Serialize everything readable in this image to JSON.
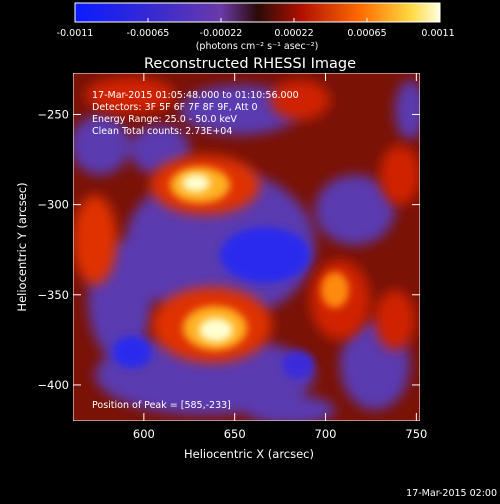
{
  "colorbar": {
    "ticks": [
      "-0.0011",
      "-0.00065",
      "-0.00022",
      "0.00022",
      "0.00065",
      "0.0011"
    ],
    "unit_label": "(photons cm⁻² s⁻¹ asec⁻²)"
  },
  "title": "Reconstructed RHESSI Image",
  "info": {
    "time_range": "17-Mar-2015 01:05:48.000 to 01:10:56.000",
    "detectors": "Detectors: 3F 5F 6F 7F 8F 9F, Att 0",
    "energy": "Energy Range: 25.0 - 50.0 keV",
    "clean": "Clean     Total counts: 2.73E+04",
    "peak": "Position of Peak = [585,-233]"
  },
  "axes": {
    "xlabel": "Heliocentric X (arcsec)",
    "ylabel": "Heliocentric Y (arcsec)",
    "xrange": [
      561,
      752
    ],
    "yrange": [
      -420,
      -227
    ],
    "xticks": [
      {
        "value": 600,
        "label": "600"
      },
      {
        "value": 650,
        "label": "650"
      },
      {
        "value": 700,
        "label": "700"
      },
      {
        "value": 750,
        "label": "750"
      }
    ],
    "yticks": [
      {
        "value": -250,
        "label": "−250"
      },
      {
        "value": -300,
        "label": "−300"
      },
      {
        "value": -350,
        "label": "−350"
      },
      {
        "value": -400,
        "label": "−400"
      }
    ]
  },
  "footer_date": "17-Mar-2015 02:00"
}
